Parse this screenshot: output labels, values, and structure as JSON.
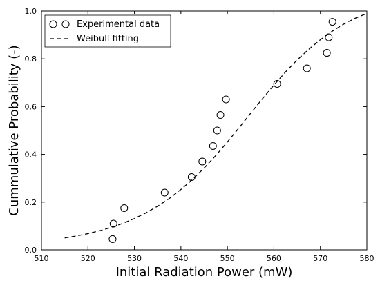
{
  "chart_data": {
    "type": "scatter",
    "xlabel": "Initial Radiation Power (mW)",
    "ylabel": "Cummulative Probability (-)",
    "xlim": [
      510,
      580
    ],
    "ylim": [
      0.0,
      1.0
    ],
    "xticks": [
      "510",
      "520",
      "530",
      "540",
      "550",
      "560",
      "570",
      "580"
    ],
    "yticks": [
      "0.0",
      "0.2",
      "0.4",
      "0.6",
      "0.8",
      "1.0"
    ],
    "grid": false,
    "legend_position": "top-left",
    "series": [
      {
        "name": "Experimental data",
        "kind": "markers",
        "marker": "open-circle",
        "color": "#000000",
        "points": [
          {
            "x": 525.3,
            "y": 0.045
          },
          {
            "x": 525.5,
            "y": 0.11
          },
          {
            "x": 527.8,
            "y": 0.175
          },
          {
            "x": 536.5,
            "y": 0.24
          },
          {
            "x": 542.3,
            "y": 0.305
          },
          {
            "x": 544.6,
            "y": 0.37
          },
          {
            "x": 546.9,
            "y": 0.435
          },
          {
            "x": 547.8,
            "y": 0.5
          },
          {
            "x": 548.5,
            "y": 0.565
          },
          {
            "x": 549.7,
            "y": 0.63
          },
          {
            "x": 560.7,
            "y": 0.695
          },
          {
            "x": 567.1,
            "y": 0.76
          },
          {
            "x": 571.4,
            "y": 0.825
          },
          {
            "x": 571.8,
            "y": 0.89
          },
          {
            "x": 572.6,
            "y": 0.955
          }
        ]
      },
      {
        "name": "Weibull fitting",
        "kind": "line",
        "line_style": "dashed",
        "color": "#000000",
        "points": [
          {
            "x": 515,
            "y": 0.05
          },
          {
            "x": 517.5,
            "y": 0.058
          },
          {
            "x": 520,
            "y": 0.068
          },
          {
            "x": 522.5,
            "y": 0.08
          },
          {
            "x": 525,
            "y": 0.094
          },
          {
            "x": 527.5,
            "y": 0.111
          },
          {
            "x": 530,
            "y": 0.131
          },
          {
            "x": 532.5,
            "y": 0.155
          },
          {
            "x": 535,
            "y": 0.183
          },
          {
            "x": 537.5,
            "y": 0.215
          },
          {
            "x": 540,
            "y": 0.253
          },
          {
            "x": 542.5,
            "y": 0.295
          },
          {
            "x": 545,
            "y": 0.343
          },
          {
            "x": 547.5,
            "y": 0.395
          },
          {
            "x": 550,
            "y": 0.452
          },
          {
            "x": 552.5,
            "y": 0.511
          },
          {
            "x": 555,
            "y": 0.572
          },
          {
            "x": 557.5,
            "y": 0.632
          },
          {
            "x": 560,
            "y": 0.69
          },
          {
            "x": 562.5,
            "y": 0.745
          },
          {
            "x": 565,
            "y": 0.795
          },
          {
            "x": 567.5,
            "y": 0.84
          },
          {
            "x": 570,
            "y": 0.88
          },
          {
            "x": 572.5,
            "y": 0.915
          },
          {
            "x": 575,
            "y": 0.945
          },
          {
            "x": 577.5,
            "y": 0.97
          },
          {
            "x": 580,
            "y": 0.99
          }
        ]
      }
    ]
  }
}
